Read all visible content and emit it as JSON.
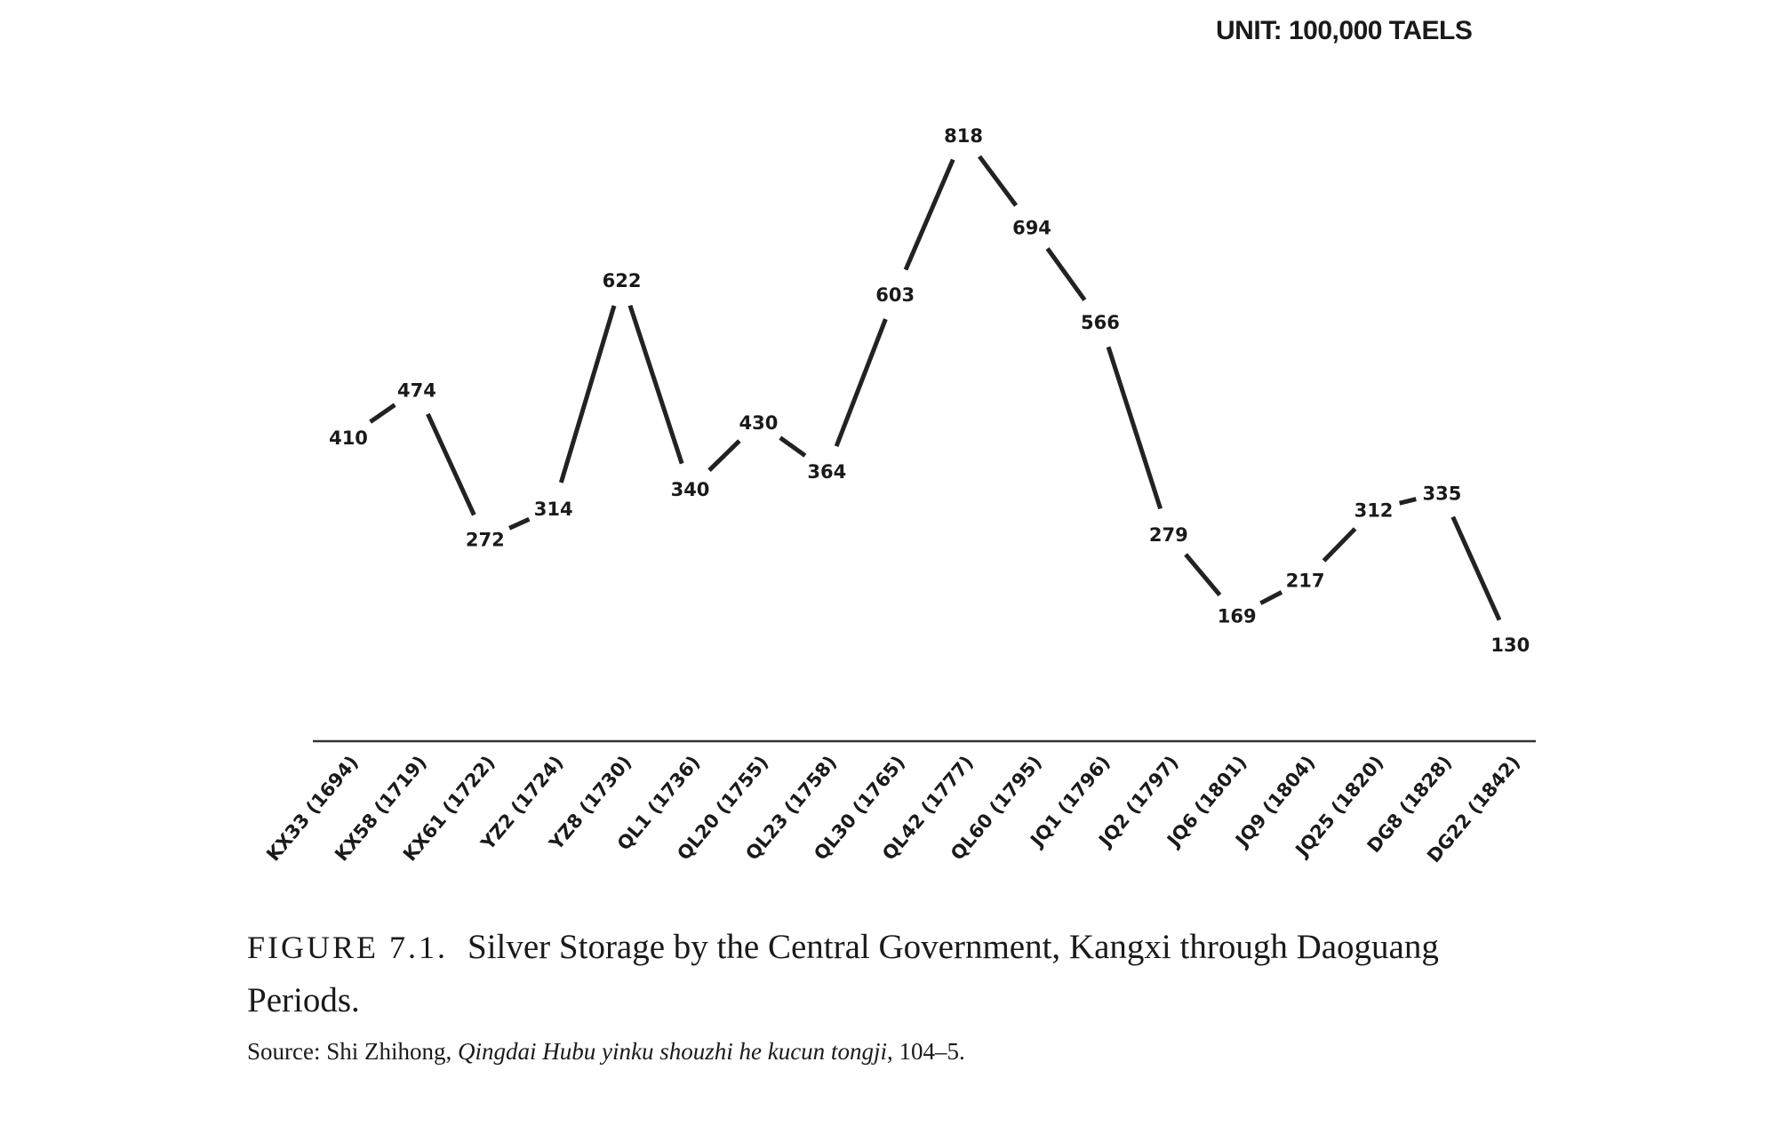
{
  "chart_data": {
    "type": "line",
    "title": "Silver Storage by the Central Government, Kangxi through Daoguang Periods.",
    "unit_label": "UNIT: 100,000 TAELS",
    "xlabel": "",
    "ylabel": "",
    "ylim": [
      130,
      818
    ],
    "grid": false,
    "legend": "none",
    "categories": [
      "KX33 (1694)",
      "KX58 (1719)",
      "KX61 (1722)",
      "YZ2 (1724)",
      "YZ8 (1730)",
      "QL1  (1736)",
      "QL20 (1755)",
      "QL23 (1758)",
      "QL30 (1765)",
      "QL42 (1777)",
      "QL60 (1795)",
      "JQ1 (1796)",
      "JQ2 (1797)",
      "JQ6 (1801)",
      "JQ9 (1804)",
      "JQ25 (1820)",
      "DG8 (1828)",
      "DG22 (1842)"
    ],
    "series": [
      {
        "name": "Silver storage",
        "values": [
          410,
          474,
          272,
          314,
          622,
          340,
          430,
          364,
          603,
          818,
          694,
          566,
          279,
          169,
          217,
          312,
          335,
          130
        ]
      }
    ]
  },
  "caption": {
    "figure_number": "FIGURE 7.1.",
    "title": "Silver Storage by the Central Government, Kangxi through Daoguang Periods.",
    "source_prefix": "Source: Shi Zhihong, ",
    "source_title": "Qingdai Hubu yinku shouzhi he kucun tongji",
    "source_suffix": ", 104–5."
  }
}
